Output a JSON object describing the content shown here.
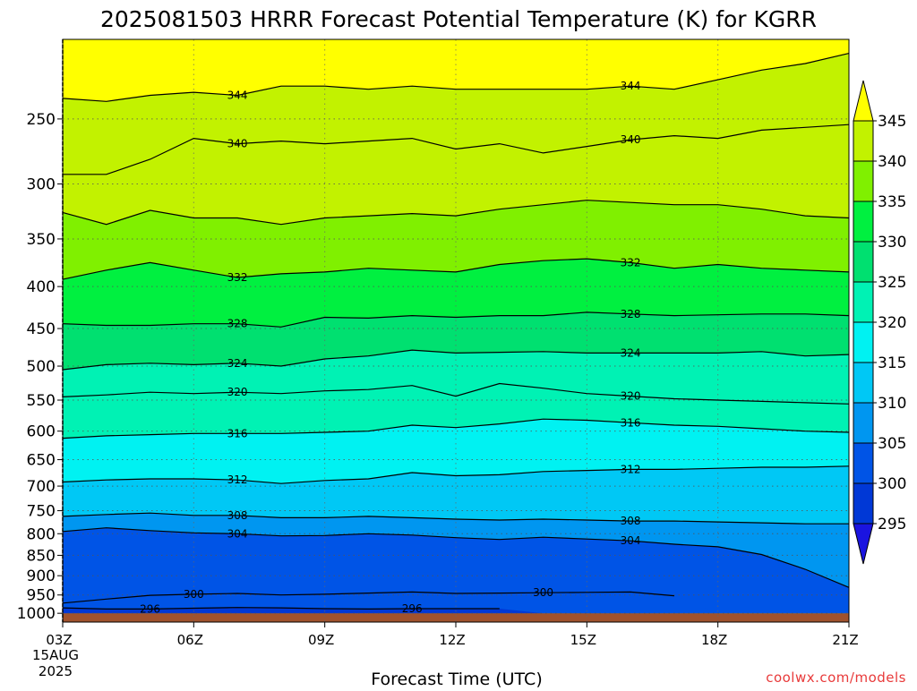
{
  "chart_data": {
    "type": "contour",
    "title": "2025081503 HRRR Forecast Potential Temperature (K) for KGRR",
    "xlabel": "Forecast Time (UTC)",
    "ylabel": "",
    "credit": "coolwx.com/models",
    "x_ticks": [
      "03Z",
      "06Z",
      "09Z",
      "12Z",
      "15Z",
      "18Z",
      "21Z"
    ],
    "x_start_date": [
      "15AUG",
      "2025"
    ],
    "x_hours": [
      3,
      21
    ],
    "y_axis": "pressure (hPa), log scale, inverted",
    "y_ticks": [
      "250",
      "300",
      "350",
      "400",
      "450",
      "500",
      "550",
      "600",
      "650",
      "700",
      "750",
      "800",
      "850",
      "900",
      "950",
      "1000"
    ],
    "y_range": [
      200,
      1025
    ],
    "grid": "dotted",
    "colorbar": {
      "levels": [
        "295",
        "300",
        "305",
        "310",
        "315",
        "320",
        "325",
        "330",
        "335",
        "340",
        "345"
      ],
      "colors": [
        "#1a14e0",
        "#0038d6",
        "#0054e6",
        "#0096f0",
        "#00c8f5",
        "#00f2f2",
        "#00f2b4",
        "#00e070",
        "#00f040",
        "#80f000",
        "#c2f200",
        "#ffff00"
      ],
      "extends": "both"
    },
    "ground_color": "#a0522d",
    "contour_interval_k": 4,
    "contours": [
      {
        "level": 296,
        "label": "296",
        "p": [
          985,
          988,
          988,
          986,
          984,
          985,
          987,
          988,
          987,
          987,
          987,
          0,
          0,
          0,
          0,
          0,
          0,
          0,
          0
        ]
      },
      {
        "level": 300,
        "label": "300",
        "p": [
          972,
          961,
          951,
          948,
          946,
          950,
          948,
          945,
          942,
          946,
          945,
          944,
          943,
          942,
          952,
          0,
          0,
          0,
          0
        ]
      },
      {
        "level": 304,
        "label": "304",
        "p": [
          795,
          787,
          793,
          798,
          800,
          805,
          804,
          800,
          803,
          809,
          813,
          808,
          812,
          816,
          824,
          830,
          848,
          884,
          930
        ]
      },
      {
        "level": 308,
        "label": "308",
        "p": [
          762,
          758,
          755,
          760,
          760,
          765,
          765,
          762,
          765,
          768,
          770,
          768,
          770,
          772,
          772,
          774,
          776,
          778,
          778
        ]
      },
      {
        "level": 312,
        "label": "312",
        "p": [
          692,
          688,
          686,
          686,
          688,
          695,
          689,
          686,
          674,
          680,
          678,
          672,
          670,
          668,
          668,
          666,
          664,
          664,
          662
        ]
      },
      {
        "level": 316,
        "label": "316",
        "p": [
          612,
          608,
          606,
          604,
          604,
          604,
          602,
          600,
          590,
          594,
          588,
          580,
          582,
          586,
          590,
          592,
          596,
          600,
          602
        ]
      },
      {
        "level": 320,
        "label": "320",
        "p": [
          545,
          542,
          538,
          540,
          538,
          540,
          536,
          534,
          528,
          544,
          525,
          532,
          540,
          544,
          548,
          550,
          552,
          554,
          556
        ]
      },
      {
        "level": 324,
        "label": "324",
        "p": [
          505,
          498,
          496,
          498,
          496,
          500,
          490,
          486,
          478,
          482,
          481,
          480,
          482,
          482,
          482,
          482,
          480,
          486,
          484
        ]
      },
      {
        "level": 328,
        "label": "328",
        "p": [
          444,
          446,
          446,
          444,
          444,
          448,
          436,
          437,
          434,
          436,
          434,
          434,
          430,
          432,
          434,
          433,
          432,
          432,
          434
        ]
      },
      {
        "level": 332,
        "label": "332",
        "p": [
          392,
          382,
          374,
          382,
          390,
          386,
          384,
          380,
          382,
          384,
          376,
          372,
          370,
          374,
          380,
          376,
          380,
          382,
          384
        ]
      },
      {
        "level": 336,
        "label": "",
        "p": [
          325,
          336,
          323,
          330,
          330,
          336,
          330,
          328,
          326,
          328,
          322,
          318,
          314,
          316,
          318,
          318,
          322,
          328,
          330
        ]
      },
      {
        "level": 340,
        "label": "340",
        "p": [
          292,
          292,
          280,
          264,
          268,
          266,
          268,
          266,
          264,
          272,
          268,
          275,
          270,
          265,
          262,
          264,
          258,
          256,
          254
        ]
      },
      {
        "level": 344,
        "label": "344",
        "p": [
          236,
          238,
          234,
          232,
          234,
          228,
          228,
          230,
          228,
          230,
          230,
          230,
          230,
          228,
          230,
          224,
          218,
          214,
          208
        ]
      }
    ]
  }
}
